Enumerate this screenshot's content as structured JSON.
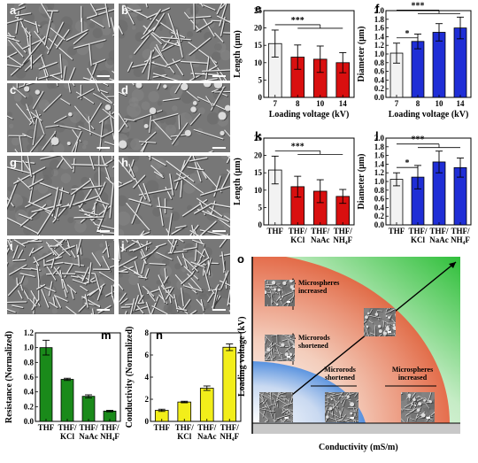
{
  "panel_labels": {
    "a": "a",
    "b": "b",
    "c": "c",
    "d": "d",
    "g": "g",
    "h": "h",
    "i": "i",
    "j": "j",
    "e": "e",
    "f": "f",
    "k": "k",
    "l": "l",
    "m": "m",
    "n": "n",
    "o": "o"
  },
  "colors": {
    "white_bar": "#f2f2f2",
    "red_bar": "#d90f0f",
    "blue_bar": "#1f2ed6",
    "green_bar": "#1a8a1a",
    "yellow_bar": "#f2ee1a"
  },
  "chart_data": [
    {
      "id": "e",
      "type": "bar",
      "categories": [
        "7",
        "8",
        "10",
        "14"
      ],
      "values": [
        15.5,
        11.6,
        11.0,
        10.0
      ],
      "errors": [
        3.9,
        3.5,
        3.8,
        2.9
      ],
      "bar_colors": [
        "#f2f2f2",
        "#d90f0f",
        "#d90f0f",
        "#d90f0f"
      ],
      "ylabel": "Length (μm)",
      "xlabel": "Loading voltage (kV)",
      "ylim": [
        0,
        25
      ],
      "yticks": [
        "0",
        "5",
        "10",
        "15",
        "20",
        "25"
      ],
      "significance": "***"
    },
    {
      "id": "f",
      "type": "bar",
      "categories": [
        "7",
        "8",
        "10",
        "14"
      ],
      "values": [
        1.02,
        1.29,
        1.5,
        1.6
      ],
      "errors": [
        0.23,
        0.17,
        0.2,
        0.25
      ],
      "bar_colors": [
        "#f2f2f2",
        "#1f2ed6",
        "#1f2ed6",
        "#1f2ed6"
      ],
      "ylabel": "Diameter (μm)",
      "xlabel": "Loading voltage (kV)",
      "ylim": [
        0,
        2.0
      ],
      "yticks": [
        "0.0",
        "0.2",
        "0.4",
        "0.6",
        "0.8",
        "1.0",
        "1.2",
        "1.4",
        "1.6",
        "1.8",
        "2.0"
      ],
      "significance": [
        "*",
        "***"
      ]
    },
    {
      "id": "k",
      "type": "bar",
      "categories": [
        "THF",
        "THF/\nKCl",
        "THF/\nNaAc",
        "THF/\nNH₄F"
      ],
      "values": [
        15.8,
        11.0,
        9.7,
        8.2
      ],
      "errors": [
        4.0,
        3.0,
        3.3,
        2.0
      ],
      "bar_colors": [
        "#f2f2f2",
        "#d90f0f",
        "#d90f0f",
        "#d90f0f"
      ],
      "ylabel": "Length (μm)",
      "ylim": [
        0,
        25
      ],
      "yticks": [
        "0",
        "5",
        "10",
        "15",
        "20",
        "25"
      ],
      "significance": "***"
    },
    {
      "id": "l",
      "type": "bar",
      "categories": [
        "THF",
        "THF/\nKCl",
        "THF/\nNaAc",
        "THF/\nNH₄F"
      ],
      "values": [
        1.05,
        1.1,
        1.45,
        1.32
      ],
      "errors": [
        0.15,
        0.27,
        0.25,
        0.22
      ],
      "bar_colors": [
        "#f2f2f2",
        "#1f2ed6",
        "#1f2ed6",
        "#1f2ed6"
      ],
      "ylabel": "Diameter (μm)",
      "ylim": [
        0,
        2.0
      ],
      "yticks": [
        "0.0",
        "0.2",
        "0.4",
        "0.6",
        "0.8",
        "1.0",
        "1.2",
        "1.4",
        "1.6",
        "1.8",
        "2.0"
      ],
      "significance": [
        "*",
        "***"
      ]
    },
    {
      "id": "m",
      "type": "bar",
      "categories": [
        "THF",
        "THF/\nKCl",
        "THF/\nNaAc",
        "THF/\nNH₄F"
      ],
      "values": [
        1.0,
        0.57,
        0.34,
        0.14
      ],
      "errors": [
        0.1,
        0.015,
        0.02,
        0.01
      ],
      "bar_colors": [
        "#1a8a1a",
        "#1a8a1a",
        "#1a8a1a",
        "#1a8a1a"
      ],
      "ylabel": "Resistance (Normalized)",
      "ylim": [
        0,
        1.2
      ],
      "yticks": [
        "0.0",
        "0.2",
        "0.4",
        "0.6",
        "0.8",
        "1.0",
        "1.2"
      ]
    },
    {
      "id": "n",
      "type": "bar",
      "categories": [
        "THF",
        "THF/\nKCl",
        "THF/\nNaAc",
        "THF/\nNH₄F"
      ],
      "values": [
        1.0,
        1.75,
        3.0,
        6.7
      ],
      "errors": [
        0.1,
        0.07,
        0.2,
        0.3
      ],
      "bar_colors": [
        "#f2ee1a",
        "#f2ee1a",
        "#f2ee1a",
        "#f2ee1a"
      ],
      "ylabel": "Conductivity (Normalized)",
      "ylim": [
        0,
        8
      ],
      "yticks": [
        "0",
        "2",
        "4",
        "6",
        "8"
      ]
    }
  ],
  "panel_o": {
    "ylabel": "Loading voltage (kV)",
    "xlabel": "Conductivity (mS/m)",
    "annotations": {
      "microspheres_up": "Microspheres\nincreased",
      "microrods_up": "Microrods\nshortened",
      "microrods_right": "Microrods\nshortened",
      "microspheres_right": "Microspheres\nincreased"
    }
  }
}
